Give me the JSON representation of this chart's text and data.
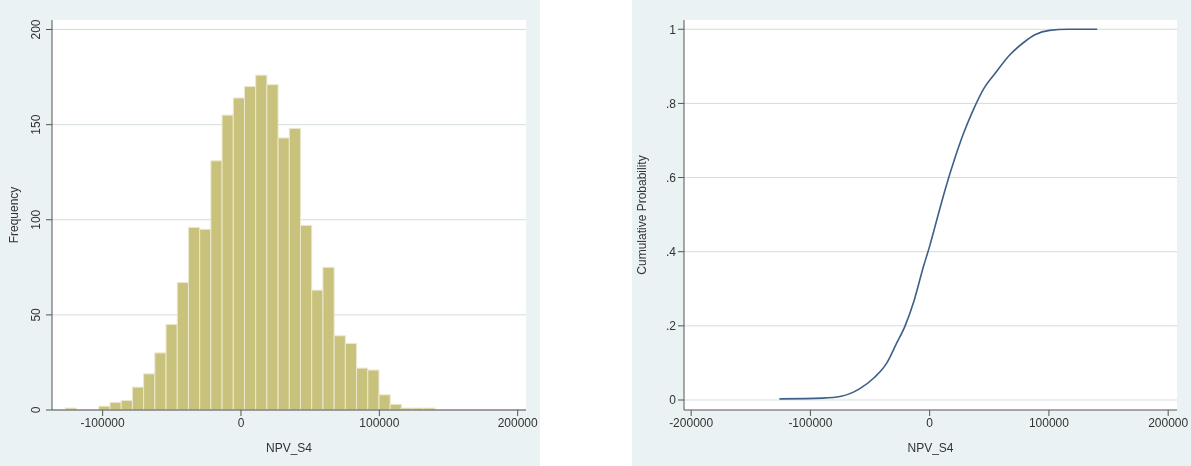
{
  "chart_data": [
    {
      "type": "histogram",
      "xlabel": "NPV_S4",
      "ylabel": "Frequency",
      "color": "#c9c27c",
      "bins": [
        -127000,
        -118900,
        -110800,
        -102700,
        -94600,
        -86500,
        -78400,
        -70300,
        -62200,
        -54100,
        -46000,
        -37900,
        -29800,
        -21700,
        -13600,
        -5500,
        2600,
        10700,
        18800,
        26900,
        35000,
        43100,
        51200,
        59300,
        67400,
        75500,
        83600,
        91700,
        99800,
        107900,
        116000,
        124100,
        132200,
        140300
      ],
      "values": [
        1,
        0,
        0,
        2,
        4,
        5,
        12,
        19,
        30,
        45,
        67,
        96,
        95,
        131,
        155,
        164,
        170,
        176,
        171,
        143,
        148,
        97,
        63,
        75,
        39,
        35,
        22,
        21,
        8,
        3,
        1,
        1,
        1
      ],
      "xlim": [
        -136600,
        206000
      ],
      "xticks": [
        -100000,
        0,
        100000,
        200000
      ],
      "ylim": [
        0,
        205
      ],
      "yticks": [
        0,
        50,
        100,
        150,
        200
      ],
      "grid": "y"
    },
    {
      "type": "line",
      "xlabel": "NPV_S4",
      "ylabel": "Cumulative Probability",
      "color": "#3d5f88",
      "x": [
        -126000,
        -89600,
        -74200,
        -58900,
        -46600,
        -35900,
        -28200,
        -20600,
        -12900,
        -5200,
        0,
        5500,
        13200,
        20900,
        28500,
        36200,
        45400,
        54600,
        66900,
        79100,
        88300,
        100600,
        116000,
        140500
      ],
      "values": [
        0.003,
        0.005,
        0.01,
        0.03,
        0.06,
        0.1,
        0.15,
        0.2,
        0.27,
        0.36,
        0.415,
        0.48,
        0.57,
        0.65,
        0.72,
        0.78,
        0.84,
        0.88,
        0.93,
        0.965,
        0.985,
        0.997,
        1,
        1
      ],
      "xlim": [
        -206000,
        207400
      ],
      "xticks": [
        -200000,
        -100000,
        0,
        100000,
        200000
      ],
      "ylim": [
        -0.027,
        1.025
      ],
      "yticks": [
        0,
        {
          "value": 0.2,
          "label": ".2"
        },
        {
          "value": 0.4,
          "label": ".4"
        },
        {
          "value": 0.6,
          "label": ".6"
        },
        {
          "value": 0.8,
          "label": ".8"
        },
        1
      ],
      "grid": "y",
      "marker": "none",
      "line_style": "solid"
    }
  ]
}
